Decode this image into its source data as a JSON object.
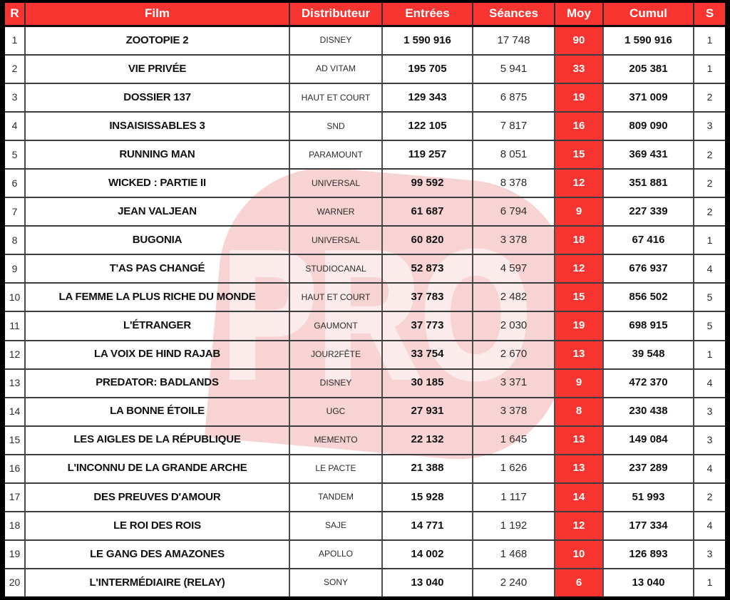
{
  "theme": {
    "accent_red": "#F7342F",
    "grid_line": "#4d4d4d",
    "frame_black": "#000000",
    "watermark_pink": "#F8D3D4",
    "watermark_letter": "#FCEBEB"
  },
  "watermark": {
    "text": "PRO"
  },
  "table": {
    "columns": [
      {
        "key": "r",
        "label": "R"
      },
      {
        "key": "film",
        "label": "Film"
      },
      {
        "key": "distributeur",
        "label": "Distributeur"
      },
      {
        "key": "entrees",
        "label": "Entrées"
      },
      {
        "key": "seances",
        "label": "Séances"
      },
      {
        "key": "moy",
        "label": "Moy"
      },
      {
        "key": "cumul",
        "label": "Cumul"
      },
      {
        "key": "s",
        "label": "S"
      }
    ],
    "rows": [
      {
        "r": "1",
        "film": "ZOOTOPIE 2",
        "distributeur": "DISNEY",
        "entrees": "1 590 916",
        "seances": "17 748",
        "moy": "90",
        "cumul": "1 590 916",
        "s": "1"
      },
      {
        "r": "2",
        "film": "VIE PRIVÉE",
        "distributeur": "AD VITAM",
        "entrees": "195 705",
        "seances": "5 941",
        "moy": "33",
        "cumul": "205 381",
        "s": "1"
      },
      {
        "r": "3",
        "film": "DOSSIER 137",
        "distributeur": "HAUT ET COURT",
        "entrees": "129 343",
        "seances": "6 875",
        "moy": "19",
        "cumul": "371 009",
        "s": "2"
      },
      {
        "r": "4",
        "film": "INSAISISSABLES 3",
        "distributeur": "SND",
        "entrees": "122 105",
        "seances": "7 817",
        "moy": "16",
        "cumul": "809 090",
        "s": "3"
      },
      {
        "r": "5",
        "film": "RUNNING MAN",
        "distributeur": "PARAMOUNT",
        "entrees": "119 257",
        "seances": "8 051",
        "moy": "15",
        "cumul": "369 431",
        "s": "2"
      },
      {
        "r": "6",
        "film": "WICKED : PARTIE II",
        "distributeur": "UNIVERSAL",
        "entrees": "99 592",
        "seances": "8 378",
        "moy": "12",
        "cumul": "351 881",
        "s": "2"
      },
      {
        "r": "7",
        "film": "JEAN VALJEAN",
        "distributeur": "WARNER",
        "entrees": "61 687",
        "seances": "6 794",
        "moy": "9",
        "cumul": "227 339",
        "s": "2"
      },
      {
        "r": "8",
        "film": "BUGONIA",
        "distributeur": "UNIVERSAL",
        "entrees": "60 820",
        "seances": "3 378",
        "moy": "18",
        "cumul": "67 416",
        "s": "1"
      },
      {
        "r": "9",
        "film": "T'AS PAS CHANGÉ",
        "distributeur": "STUDIOCANAL",
        "entrees": "52 873",
        "seances": "4 597",
        "moy": "12",
        "cumul": "676 937",
        "s": "4"
      },
      {
        "r": "10",
        "film": "LA FEMME LA PLUS RICHE DU MONDE",
        "distributeur": "HAUT ET COURT",
        "entrees": "37 783",
        "seances": "2 482",
        "moy": "15",
        "cumul": "856 502",
        "s": "5"
      },
      {
        "r": "11",
        "film": "L'ÉTRANGER",
        "distributeur": "GAUMONT",
        "entrees": "37 773",
        "seances": "2 030",
        "moy": "19",
        "cumul": "698 915",
        "s": "5"
      },
      {
        "r": "12",
        "film": "LA VOIX DE HIND RAJAB",
        "distributeur": "JOUR2FÊTE",
        "entrees": "33 754",
        "seances": "2 670",
        "moy": "13",
        "cumul": "39 548",
        "s": "1"
      },
      {
        "r": "13",
        "film": "PREDATOR: BADLANDS",
        "distributeur": "DISNEY",
        "entrees": "30 185",
        "seances": "3 371",
        "moy": "9",
        "cumul": "472 370",
        "s": "4"
      },
      {
        "r": "14",
        "film": "LA BONNE ÉTOILE",
        "distributeur": "UGC",
        "entrees": "27 931",
        "seances": "3 378",
        "moy": "8",
        "cumul": "230 438",
        "s": "3"
      },
      {
        "r": "15",
        "film": "LES AIGLES DE LA RÉPUBLIQUE",
        "distributeur": "MEMENTO",
        "entrees": "22 132",
        "seances": "1 645",
        "moy": "13",
        "cumul": "149 084",
        "s": "3"
      },
      {
        "r": "16",
        "film": "L'INCONNU DE LA GRANDE ARCHE",
        "distributeur": "LE PACTE",
        "entrees": "21 388",
        "seances": "1 626",
        "moy": "13",
        "cumul": "237 289",
        "s": "4"
      },
      {
        "r": "17",
        "film": "DES PREUVES D'AMOUR",
        "distributeur": "TANDEM",
        "entrees": "15 928",
        "seances": "1 117",
        "moy": "14",
        "cumul": "51 993",
        "s": "2"
      },
      {
        "r": "18",
        "film": "LE ROI DES ROIS",
        "distributeur": "SAJE",
        "entrees": "14 771",
        "seances": "1 192",
        "moy": "12",
        "cumul": "177 334",
        "s": "4"
      },
      {
        "r": "19",
        "film": "LE GANG DES AMAZONES",
        "distributeur": "APOLLO",
        "entrees": "14 002",
        "seances": "1 468",
        "moy": "10",
        "cumul": "126 893",
        "s": "3"
      },
      {
        "r": "20",
        "film": "L'INTERMÉDIAIRE (RELAY)",
        "distributeur": "SONY",
        "entrees": "13 040",
        "seances": "2 240",
        "moy": "6",
        "cumul": "13 040",
        "s": "1"
      }
    ]
  }
}
